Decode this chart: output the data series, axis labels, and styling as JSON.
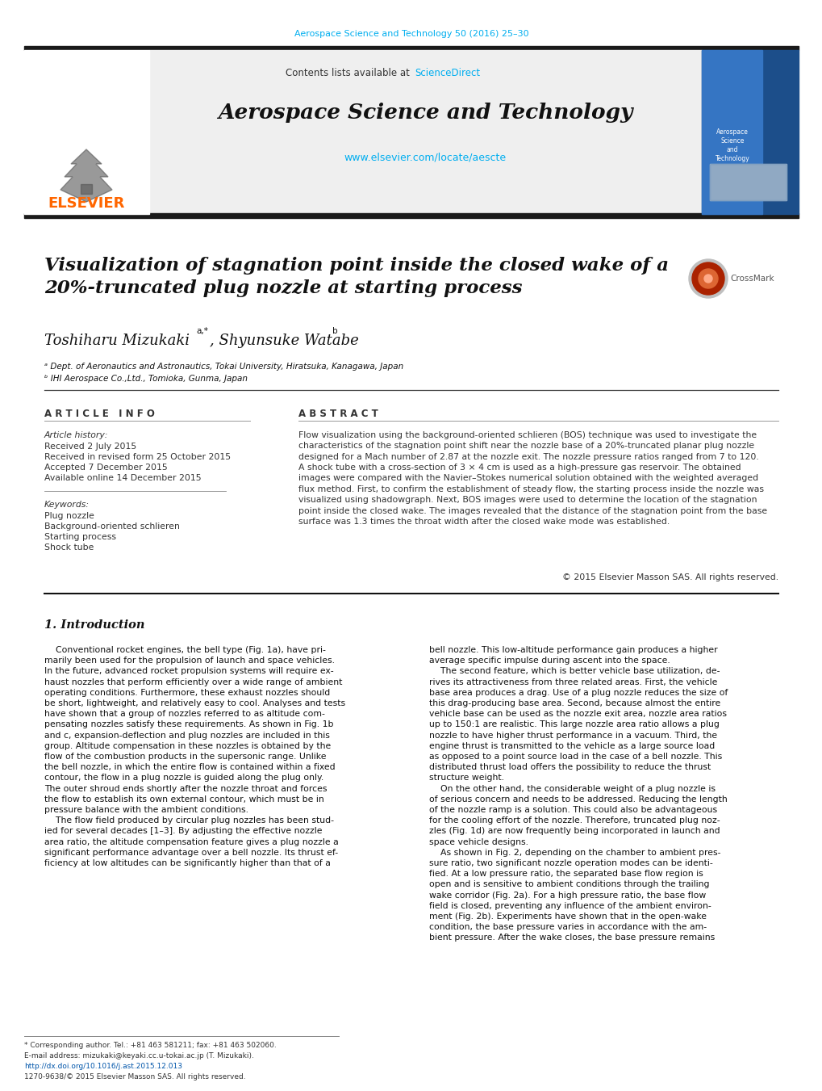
{
  "bg_color": "#ffffff",
  "top_journal_line": "Aerospace Science and Technology 50 (2016) 25–30",
  "top_journal_color": "#00AEEF",
  "header_bg": "#efefef",
  "contents_text": "Contents lists available at ",
  "sciencedirect_text": "ScienceDirect",
  "sciencedirect_color": "#00AEEF",
  "journal_title": "Aerospace Science and Technology",
  "journal_url": "www.elsevier.com/locate/aescte",
  "journal_url_color": "#00AEEF",
  "elsevier_color": "#FF6600",
  "black_bar_color": "#1a1a1a",
  "article_title": "Visualization of stagnation point inside the closed wake of a\n20%-truncated plug nozzle at starting process",
  "authors": "Toshiharu Mizukaki",
  "authors_super": "a,*",
  "authors2": ", Shyunsuke Watabe",
  "authors2_super": "b",
  "affil1": "ᵃ Dept. of Aeronautics and Astronautics, Tokai University, Hiratsuka, Kanagawa, Japan",
  "affil2": "ᵇ IHI Aerospace Co.,Ltd., Tomioka, Gunma, Japan",
  "article_info_header": "A R T I C L E   I N F O",
  "abstract_header": "A B S T R A C T",
  "article_history_label": "Article history:",
  "received1": "Received 2 July 2015",
  "received2": "Received in revised form 25 October 2015",
  "accepted": "Accepted 7 December 2015",
  "available": "Available online 14 December 2015",
  "keywords_label": "Keywords:",
  "kw1": "Plug nozzle",
  "kw2": "Background-oriented schlieren",
  "kw3": "Starting process",
  "kw4": "Shock tube",
  "abstract_text": "Flow visualization using the background-oriented schlieren (BOS) technique was used to investigate the\ncharacteristics of the stagnation point shift near the nozzle base of a 20%-truncated planar plug nozzle\ndesigned for a Mach number of 2.87 at the nozzle exit. The nozzle pressure ratios ranged from 7 to 120.\nA shock tube with a cross-section of 3 × 4 cm is used as a high-pressure gas reservoir. The obtained\nimages were compared with the Navier–Stokes numerical solution obtained with the weighted averaged\nflux method. First, to confirm the establishment of steady flow, the starting process inside the nozzle was\nvisualized using shadowgraph. Next, BOS images were used to determine the location of the stagnation\npoint inside the closed wake. The images revealed that the distance of the stagnation point from the base\nsurface was 1.3 times the throat width after the closed wake mode was established.",
  "copyright_text": "© 2015 Elsevier Masson SAS. All rights reserved.",
  "intro_header": "1. Introduction",
  "intro_left": "    Conventional rocket engines, the bell type (Fig. 1a), have pri-\nmarily been used for the propulsion of launch and space vehicles.\nIn the future, advanced rocket propulsion systems will require ex-\nhaust nozzles that perform efficiently over a wide range of ambient\noperating conditions. Furthermore, these exhaust nozzles should\nbe short, lightweight, and relatively easy to cool. Analyses and tests\nhave shown that a group of nozzles referred to as altitude com-\npensating nozzles satisfy these requirements. As shown in Fig. 1b\nand c, expansion-deflection and plug nozzles are included in this\ngroup. Altitude compensation in these nozzles is obtained by the\nflow of the combustion products in the supersonic range. Unlike\nthe bell nozzle, in which the entire flow is contained within a fixed\ncontour, the flow in a plug nozzle is guided along the plug only.\nThe outer shroud ends shortly after the nozzle throat and forces\nthe flow to establish its own external contour, which must be in\npressure balance with the ambient conditions.\n    The flow field produced by circular plug nozzles has been stud-\nied for several decades [1–3]. By adjusting the effective nozzle\narea ratio, the altitude compensation feature gives a plug nozzle a\nsignificant performance advantage over a bell nozzle. Its thrust ef-\nficiency at low altitudes can be significantly higher than that of a",
  "intro_right": "bell nozzle. This low-altitude performance gain produces a higher\naverage specific impulse during ascent into the space.\n    The second feature, which is better vehicle base utilization, de-\nrives its attractiveness from three related areas. First, the vehicle\nbase area produces a drag. Use of a plug nozzle reduces the size of\nthis drag-producing base area. Second, because almost the entire\nvehicle base can be used as the nozzle exit area, nozzle area ratios\nup to 150:1 are realistic. This large nozzle area ratio allows a plug\nnozzle to have higher thrust performance in a vacuum. Third, the\nengine thrust is transmitted to the vehicle as a large source load\nas opposed to a point source load in the case of a bell nozzle. This\ndistributed thrust load offers the possibility to reduce the thrust\nstructure weight.\n    On the other hand, the considerable weight of a plug nozzle is\nof serious concern and needs to be addressed. Reducing the length\nof the nozzle ramp is a solution. This could also be advantageous\nfor the cooling effort of the nozzle. Therefore, truncated plug noz-\nzles (Fig. 1d) are now frequently being incorporated in launch and\nspace vehicle designs.\n    As shown in Fig. 2, depending on the chamber to ambient pres-\nsure ratio, two significant nozzle operation modes can be identi-\nfied. At a low pressure ratio, the separated base flow region is\nopen and is sensitive to ambient conditions through the trailing\nwake corridor (Fig. 2a). For a high pressure ratio, the base flow\nfield is closed, preventing any influence of the ambient environ-\nment (Fig. 2b). Experiments have shown that in the open-wake\ncondition, the base pressure varies in accordance with the am-\nbient pressure. After the wake closes, the base pressure remains",
  "footnote_star": "* Corresponding author. Tel.: +81 463 581211; fax: +81 463 502060.",
  "footnote_email": "E-mail address: mizukaki@keyaki.cc.u-tokai.ac.jp (T. Mizukaki).",
  "footnote_doi": "http://dx.doi.org/10.1016/j.ast.2015.12.013",
  "footnote_issn": "1270-9638/© 2015 Elsevier Masson SAS. All rights reserved."
}
